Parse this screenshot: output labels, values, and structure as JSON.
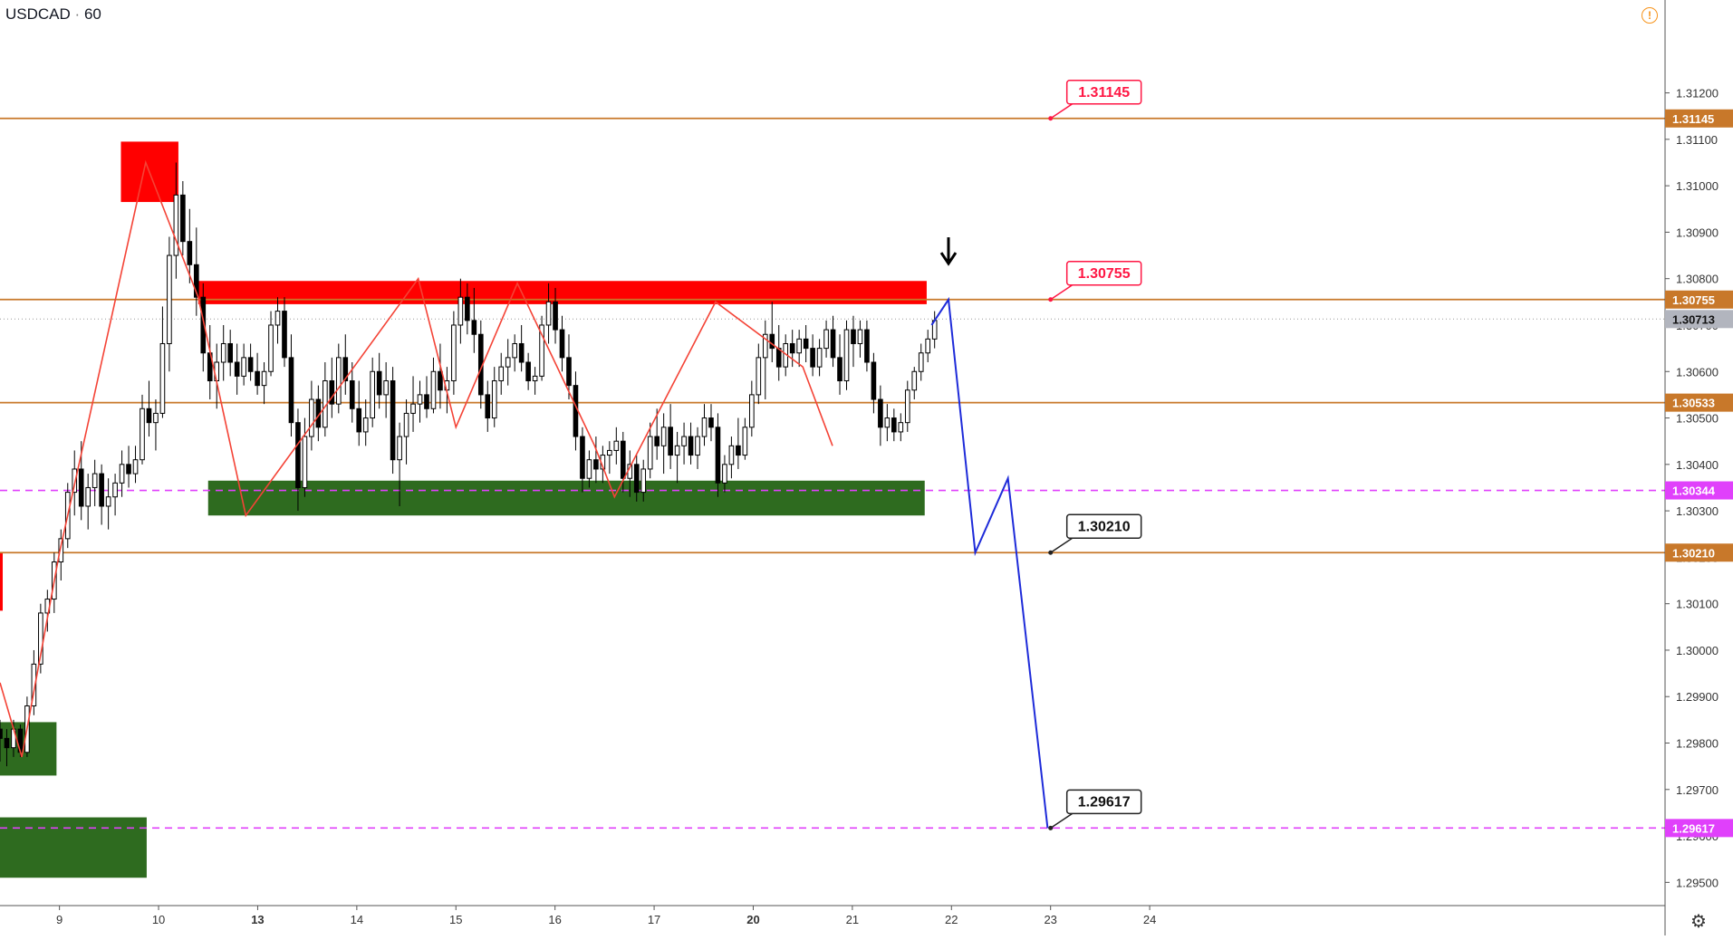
{
  "header": {
    "symbol": "USDCAD",
    "separator": "·",
    "interval": "60"
  },
  "icons": {
    "warning": "warning-circle-icon",
    "settings": "gear-icon",
    "arrow": "down-arrow-icon"
  },
  "colors": {
    "level_line": "#c8782a",
    "support_dash": "#e040fb",
    "up_candle": "#ffffff",
    "down_candle": "#000000",
    "zigzag": "#f44336",
    "projection": "#1e2bd9",
    "supply_zone": "#ff0000",
    "demand_zone": "#2e6b1f",
    "current_price_bg": "#b2b5be"
  },
  "chart_data": {
    "type": "candlestick",
    "title": "",
    "symbol": "USDCAD",
    "interval": "60",
    "y_axis": {
      "range": [
        1.2945,
        1.314
      ],
      "ticks": [
        "1.31200",
        "1.31100",
        "1.31000",
        "1.30900",
        "1.30800",
        "1.30700",
        "1.30600",
        "1.30500",
        "1.30400",
        "1.30300",
        "1.30200",
        "1.30100",
        "1.30000",
        "1.29900",
        "1.29800",
        "1.29700",
        "1.29600",
        "1.29500"
      ]
    },
    "x_axis": {
      "range_days": [
        8.4,
        25.2
      ],
      "ticks": [
        {
          "label": "9",
          "day": 9,
          "bold": false
        },
        {
          "label": "10",
          "day": 10,
          "bold": false
        },
        {
          "label": "13",
          "day": 11,
          "bold": true
        },
        {
          "label": "14",
          "day": 12,
          "bold": false
        },
        {
          "label": "15",
          "day": 13,
          "bold": false
        },
        {
          "label": "16",
          "day": 14,
          "bold": false
        },
        {
          "label": "17",
          "day": 15,
          "bold": false
        },
        {
          "label": "20",
          "day": 16,
          "bold": true
        },
        {
          "label": "21",
          "day": 17,
          "bold": false
        },
        {
          "label": "22",
          "day": 18,
          "bold": false
        },
        {
          "label": "23",
          "day": 19,
          "bold": false
        },
        {
          "label": "24",
          "day": 20,
          "bold": false
        }
      ]
    },
    "horizontal_levels": [
      {
        "price": 1.31145,
        "label": "1.31145",
        "style": "solid"
      },
      {
        "price": 1.30755,
        "label": "1.30755",
        "style": "solid"
      },
      {
        "price": 1.30533,
        "label": "1.30533",
        "style": "solid"
      },
      {
        "price": 1.30344,
        "label": "1.30344",
        "style": "dashed"
      },
      {
        "price": 1.3021,
        "label": "1.30210",
        "style": "solid"
      },
      {
        "price": 1.29617,
        "label": "1.29617",
        "style": "dashed"
      }
    ],
    "current_price": {
      "price": 1.30713,
      "label": "1.30713"
    },
    "callouts": [
      {
        "text": "1.31145",
        "anchor_day": 19.0,
        "anchor_price": 1.31145,
        "style": "red"
      },
      {
        "text": "1.30755",
        "anchor_day": 19.0,
        "anchor_price": 1.30755,
        "style": "red"
      },
      {
        "text": "1.30210",
        "anchor_day": 19.0,
        "anchor_price": 1.3021,
        "style": "dark"
      },
      {
        "text": "1.29617",
        "anchor_day": 19.0,
        "anchor_price": 1.29617,
        "style": "dark"
      }
    ],
    "zones": [
      {
        "kind": "supply",
        "day0": 9.62,
        "day1": 10.2,
        "p0": 1.30965,
        "p1": 1.31095
      },
      {
        "kind": "supply",
        "day0": 10.4,
        "day1": 17.75,
        "p0": 1.30745,
        "p1": 1.30795
      },
      {
        "kind": "supply",
        "day0": 8.4,
        "day1": 8.42,
        "p0": 1.30085,
        "p1": 1.3021
      },
      {
        "kind": "demand",
        "day0": 10.5,
        "day1": 17.73,
        "p0": 1.3029,
        "p1": 1.30365
      },
      {
        "kind": "demand",
        "day0": 8.4,
        "day1": 8.97,
        "p0": 1.2973,
        "p1": 1.29845
      },
      {
        "kind": "demand",
        "day0": 8.4,
        "day1": 9.88,
        "p0": 1.2951,
        "p1": 1.2964
      }
    ],
    "zigzag": [
      [
        8.4,
        1.2993
      ],
      [
        8.62,
        1.2977
      ],
      [
        9.0,
        1.3021
      ],
      [
        9.87,
        1.3105
      ],
      [
        10.4,
        1.3076
      ],
      [
        10.88,
        1.3029
      ],
      [
        12.62,
        1.308
      ],
      [
        13.0,
        1.3048
      ],
      [
        13.62,
        1.3079
      ],
      [
        14.4,
        1.3044
      ],
      [
        14.6,
        1.3033
      ],
      [
        15.62,
        1.3075
      ],
      [
        16.5,
        1.3061
      ],
      [
        16.8,
        1.3044
      ]
    ],
    "projection": [
      [
        17.8,
        1.307
      ],
      [
        17.97,
        1.30755
      ],
      [
        18.24,
        1.3021
      ],
      [
        18.57,
        1.3037
      ],
      [
        18.97,
        1.29617
      ]
    ],
    "arrow_marker": {
      "day": 17.97,
      "price": 1.3085
    },
    "candles_ohlc": [
      [
        1.2983,
        1.2985,
        1.2976,
        1.2981
      ],
      [
        1.2981,
        1.2983,
        1.2975,
        1.2979
      ],
      [
        1.2979,
        1.2985,
        1.2977,
        1.2983
      ],
      [
        1.2983,
        1.2984,
        1.2977,
        1.2978
      ],
      [
        1.2978,
        1.299,
        1.2977,
        1.2988
      ],
      [
        1.2988,
        1.3,
        1.2986,
        1.2997
      ],
      [
        1.2997,
        1.301,
        1.2995,
        1.3008
      ],
      [
        1.3008,
        1.3013,
        1.3004,
        1.3011
      ],
      [
        1.3011,
        1.3021,
        1.3008,
        1.3019
      ],
      [
        1.3019,
        1.3026,
        1.3015,
        1.3024
      ],
      [
        1.3024,
        1.3036,
        1.3022,
        1.3034
      ],
      [
        1.3034,
        1.3043,
        1.3029,
        1.3039
      ],
      [
        1.3039,
        1.3045,
        1.3028,
        1.3031
      ],
      [
        1.3031,
        1.3038,
        1.3026,
        1.3035
      ],
      [
        1.3035,
        1.3041,
        1.3031,
        1.3038
      ],
      [
        1.3038,
        1.304,
        1.3027,
        1.3031
      ],
      [
        1.3031,
        1.3037,
        1.3026,
        1.3033
      ],
      [
        1.3033,
        1.3038,
        1.3029,
        1.3036
      ],
      [
        1.3036,
        1.3043,
        1.3033,
        1.304
      ],
      [
        1.304,
        1.3044,
        1.3035,
        1.3038
      ],
      [
        1.3038,
        1.3044,
        1.3036,
        1.3041
      ],
      [
        1.3041,
        1.3055,
        1.304,
        1.3052
      ],
      [
        1.3052,
        1.3058,
        1.3046,
        1.3049
      ],
      [
        1.3049,
        1.3054,
        1.3043,
        1.3051
      ],
      [
        1.3051,
        1.3074,
        1.305,
        1.3066
      ],
      [
        1.3066,
        1.3089,
        1.306,
        1.3085
      ],
      [
        1.3085,
        1.3105,
        1.308,
        1.3098
      ],
      [
        1.3098,
        1.3101,
        1.3085,
        1.3088
      ],
      [
        1.3088,
        1.3095,
        1.3079,
        1.3083
      ],
      [
        1.3083,
        1.3091,
        1.3072,
        1.3076
      ],
      [
        1.3076,
        1.3079,
        1.306,
        1.3064
      ],
      [
        1.3064,
        1.307,
        1.3054,
        1.3058
      ],
      [
        1.3058,
        1.3066,
        1.3052,
        1.3062
      ],
      [
        1.3062,
        1.307,
        1.3058,
        1.3066
      ],
      [
        1.3066,
        1.3069,
        1.3059,
        1.3062
      ],
      [
        1.3062,
        1.3066,
        1.3055,
        1.3059
      ],
      [
        1.3059,
        1.3066,
        1.3057,
        1.3063
      ],
      [
        1.3063,
        1.3066,
        1.3058,
        1.306
      ],
      [
        1.306,
        1.3064,
        1.3055,
        1.3057
      ],
      [
        1.3057,
        1.3062,
        1.3053,
        1.306
      ],
      [
        1.306,
        1.3073,
        1.3059,
        1.307
      ],
      [
        1.307,
        1.3076,
        1.3066,
        1.3073
      ],
      [
        1.3073,
        1.3076,
        1.3061,
        1.3063
      ],
      [
        1.3063,
        1.3068,
        1.3046,
        1.3049
      ],
      [
        1.3049,
        1.3052,
        1.303,
        1.3035
      ],
      [
        1.3035,
        1.305,
        1.3033,
        1.3046
      ],
      [
        1.3046,
        1.3058,
        1.3043,
        1.3054
      ],
      [
        1.3054,
        1.3057,
        1.3045,
        1.3048
      ],
      [
        1.3048,
        1.3062,
        1.3046,
        1.3058
      ],
      [
        1.3058,
        1.3063,
        1.305,
        1.3053
      ],
      [
        1.3053,
        1.3066,
        1.3051,
        1.3063
      ],
      [
        1.3063,
        1.3068,
        1.3055,
        1.3058
      ],
      [
        1.3058,
        1.3062,
        1.3049,
        1.3052
      ],
      [
        1.3052,
        1.3058,
        1.3044,
        1.3047
      ],
      [
        1.3047,
        1.3054,
        1.3044,
        1.305
      ],
      [
        1.305,
        1.3063,
        1.3048,
        1.306
      ],
      [
        1.306,
        1.3064,
        1.3052,
        1.3055
      ],
      [
        1.3055,
        1.3062,
        1.305,
        1.3058
      ],
      [
        1.3058,
        1.3061,
        1.3038,
        1.3041
      ],
      [
        1.3041,
        1.3049,
        1.3031,
        1.3046
      ],
      [
        1.3046,
        1.3054,
        1.304,
        1.3051
      ],
      [
        1.3051,
        1.3059,
        1.3047,
        1.3053
      ],
      [
        1.3053,
        1.3058,
        1.3049,
        1.3055
      ],
      [
        1.3055,
        1.3059,
        1.305,
        1.3052
      ],
      [
        1.3052,
        1.3063,
        1.3051,
        1.306
      ],
      [
        1.306,
        1.3066,
        1.3052,
        1.3056
      ],
      [
        1.3056,
        1.3061,
        1.3051,
        1.3058
      ],
      [
        1.3058,
        1.3073,
        1.3055,
        1.307
      ],
      [
        1.307,
        1.308,
        1.3066,
        1.3076
      ],
      [
        1.3076,
        1.3079,
        1.3068,
        1.3071
      ],
      [
        1.3071,
        1.3078,
        1.3064,
        1.3068
      ],
      [
        1.3068,
        1.3071,
        1.3052,
        1.3055
      ],
      [
        1.3055,
        1.3058,
        1.3047,
        1.305
      ],
      [
        1.305,
        1.3061,
        1.3048,
        1.3058
      ],
      [
        1.3058,
        1.3064,
        1.3055,
        1.3061
      ],
      [
        1.3061,
        1.3067,
        1.3057,
        1.3063
      ],
      [
        1.3063,
        1.3068,
        1.306,
        1.3066
      ],
      [
        1.3066,
        1.307,
        1.306,
        1.3062
      ],
      [
        1.3062,
        1.3064,
        1.3056,
        1.3058
      ],
      [
        1.3058,
        1.3061,
        1.3055,
        1.3059
      ],
      [
        1.3059,
        1.3072,
        1.3058,
        1.307
      ],
      [
        1.307,
        1.3079,
        1.3066,
        1.3075
      ],
      [
        1.3075,
        1.3078,
        1.3066,
        1.3069
      ],
      [
        1.3069,
        1.3072,
        1.306,
        1.3063
      ],
      [
        1.3063,
        1.3068,
        1.3054,
        1.3057
      ],
      [
        1.3057,
        1.306,
        1.3043,
        1.3046
      ],
      [
        1.3046,
        1.3048,
        1.3034,
        1.3037
      ],
      [
        1.3037,
        1.3043,
        1.3035,
        1.3041
      ],
      [
        1.3041,
        1.3046,
        1.3036,
        1.3039
      ],
      [
        1.3039,
        1.3044,
        1.3036,
        1.3042
      ],
      [
        1.3042,
        1.3045,
        1.3038,
        1.3043
      ],
      [
        1.3043,
        1.3048,
        1.304,
        1.3045
      ],
      [
        1.3045,
        1.3047,
        1.3034,
        1.3037
      ],
      [
        1.3037,
        1.3043,
        1.3033,
        1.304
      ],
      [
        1.304,
        1.3042,
        1.3032,
        1.3034
      ],
      [
        1.3034,
        1.3041,
        1.3032,
        1.3039
      ],
      [
        1.3039,
        1.3049,
        1.3037,
        1.3046
      ],
      [
        1.3046,
        1.3052,
        1.3041,
        1.3044
      ],
      [
        1.3044,
        1.3051,
        1.3038,
        1.3048
      ],
      [
        1.3048,
        1.3053,
        1.3039,
        1.3042
      ],
      [
        1.3042,
        1.3047,
        1.3036,
        1.3044
      ],
      [
        1.3044,
        1.3049,
        1.304,
        1.3046
      ],
      [
        1.3046,
        1.3049,
        1.304,
        1.3042
      ],
      [
        1.3042,
        1.3048,
        1.3039,
        1.3046
      ],
      [
        1.3046,
        1.3053,
        1.3044,
        1.305
      ],
      [
        1.305,
        1.3053,
        1.3045,
        1.3048
      ],
      [
        1.3048,
        1.3051,
        1.3033,
        1.3036
      ],
      [
        1.3036,
        1.3042,
        1.3034,
        1.304
      ],
      [
        1.304,
        1.3046,
        1.3037,
        1.3044
      ],
      [
        1.3044,
        1.305,
        1.3039,
        1.3042
      ],
      [
        1.3042,
        1.305,
        1.3041,
        1.3048
      ],
      [
        1.3048,
        1.3058,
        1.3046,
        1.3055
      ],
      [
        1.3055,
        1.3066,
        1.3053,
        1.3063
      ],
      [
        1.3063,
        1.3071,
        1.3054,
        1.3068
      ],
      [
        1.3068,
        1.3075,
        1.3062,
        1.3065
      ],
      [
        1.3065,
        1.307,
        1.3058,
        1.3061
      ],
      [
        1.3061,
        1.3068,
        1.3059,
        1.3066
      ],
      [
        1.3066,
        1.3069,
        1.3061,
        1.3064
      ],
      [
        1.3064,
        1.3069,
        1.3061,
        1.3067
      ],
      [
        1.3067,
        1.307,
        1.3062,
        1.3065
      ],
      [
        1.3065,
        1.3068,
        1.3059,
        1.3061
      ],
      [
        1.3061,
        1.3067,
        1.3059,
        1.3065
      ],
      [
        1.3065,
        1.3071,
        1.3063,
        1.3069
      ],
      [
        1.3069,
        1.3072,
        1.3061,
        1.3063
      ],
      [
        1.3063,
        1.3068,
        1.3055,
        1.3058
      ],
      [
        1.3058,
        1.3071,
        1.3056,
        1.3069
      ],
      [
        1.3069,
        1.3072,
        1.3061,
        1.3066
      ],
      [
        1.3066,
        1.3071,
        1.3063,
        1.3069
      ],
      [
        1.3069,
        1.3071,
        1.306,
        1.3062
      ],
      [
        1.3062,
        1.3064,
        1.3051,
        1.3054
      ],
      [
        1.3054,
        1.3057,
        1.3044,
        1.3048
      ],
      [
        1.3048,
        1.3053,
        1.3045,
        1.305
      ],
      [
        1.305,
        1.3052,
        1.3045,
        1.3047
      ],
      [
        1.3047,
        1.3051,
        1.3045,
        1.3049
      ],
      [
        1.3049,
        1.3058,
        1.3047,
        1.3056
      ],
      [
        1.3056,
        1.3061,
        1.3054,
        1.306
      ],
      [
        1.306,
        1.3066,
        1.3058,
        1.3064
      ],
      [
        1.3064,
        1.3069,
        1.3062,
        1.3067
      ],
      [
        1.3067,
        1.3073,
        1.3065,
        1.3071
      ]
    ]
  }
}
